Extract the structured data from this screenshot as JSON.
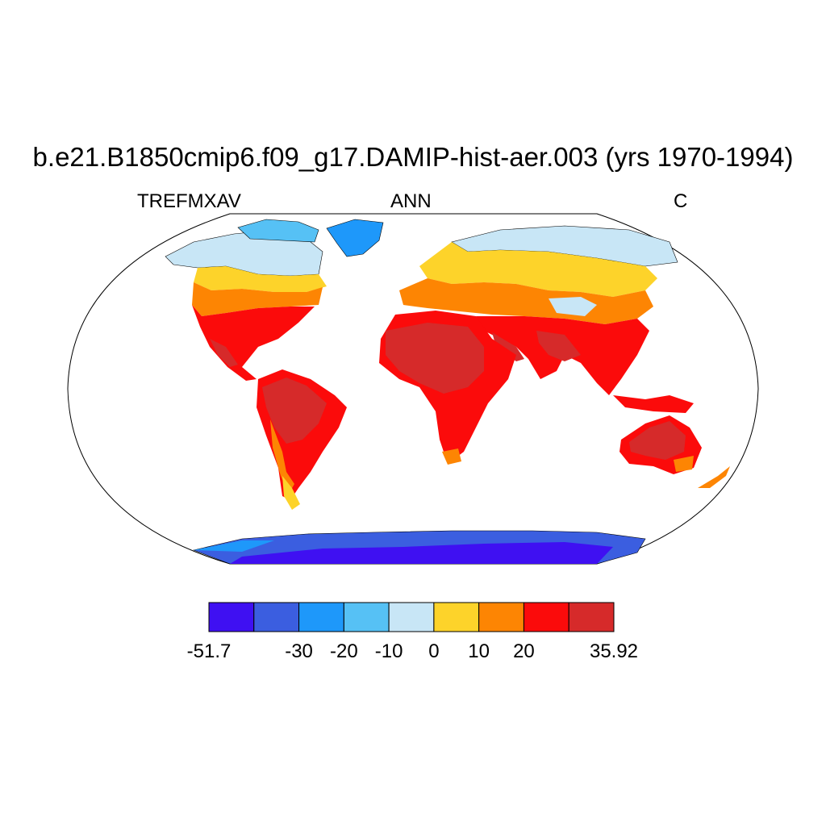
{
  "title": "b.e21.B1850cmip6.f09_g17.DAMIP-hist-aer.003 (yrs 1970-1994)",
  "left_string": "TREFMXAV",
  "center_string": "ANN",
  "right_string": "C",
  "colorbar": {
    "colors": [
      "#3f10f2",
      "#3b5ee0",
      "#1e98fa",
      "#56c1f5",
      "#c8e6f6",
      "#fdd32a",
      "#fd8503",
      "#fb0b0b",
      "#d62a2a"
    ],
    "labels": [
      "-51.7",
      "-30",
      "-20",
      "-10",
      "0",
      "10",
      "20",
      "35.92"
    ],
    "label_bounds": [
      0,
      2,
      3,
      4,
      5,
      6,
      7,
      9
    ]
  },
  "map": {
    "projection": "Robinson",
    "ocean_masked": true
  }
}
